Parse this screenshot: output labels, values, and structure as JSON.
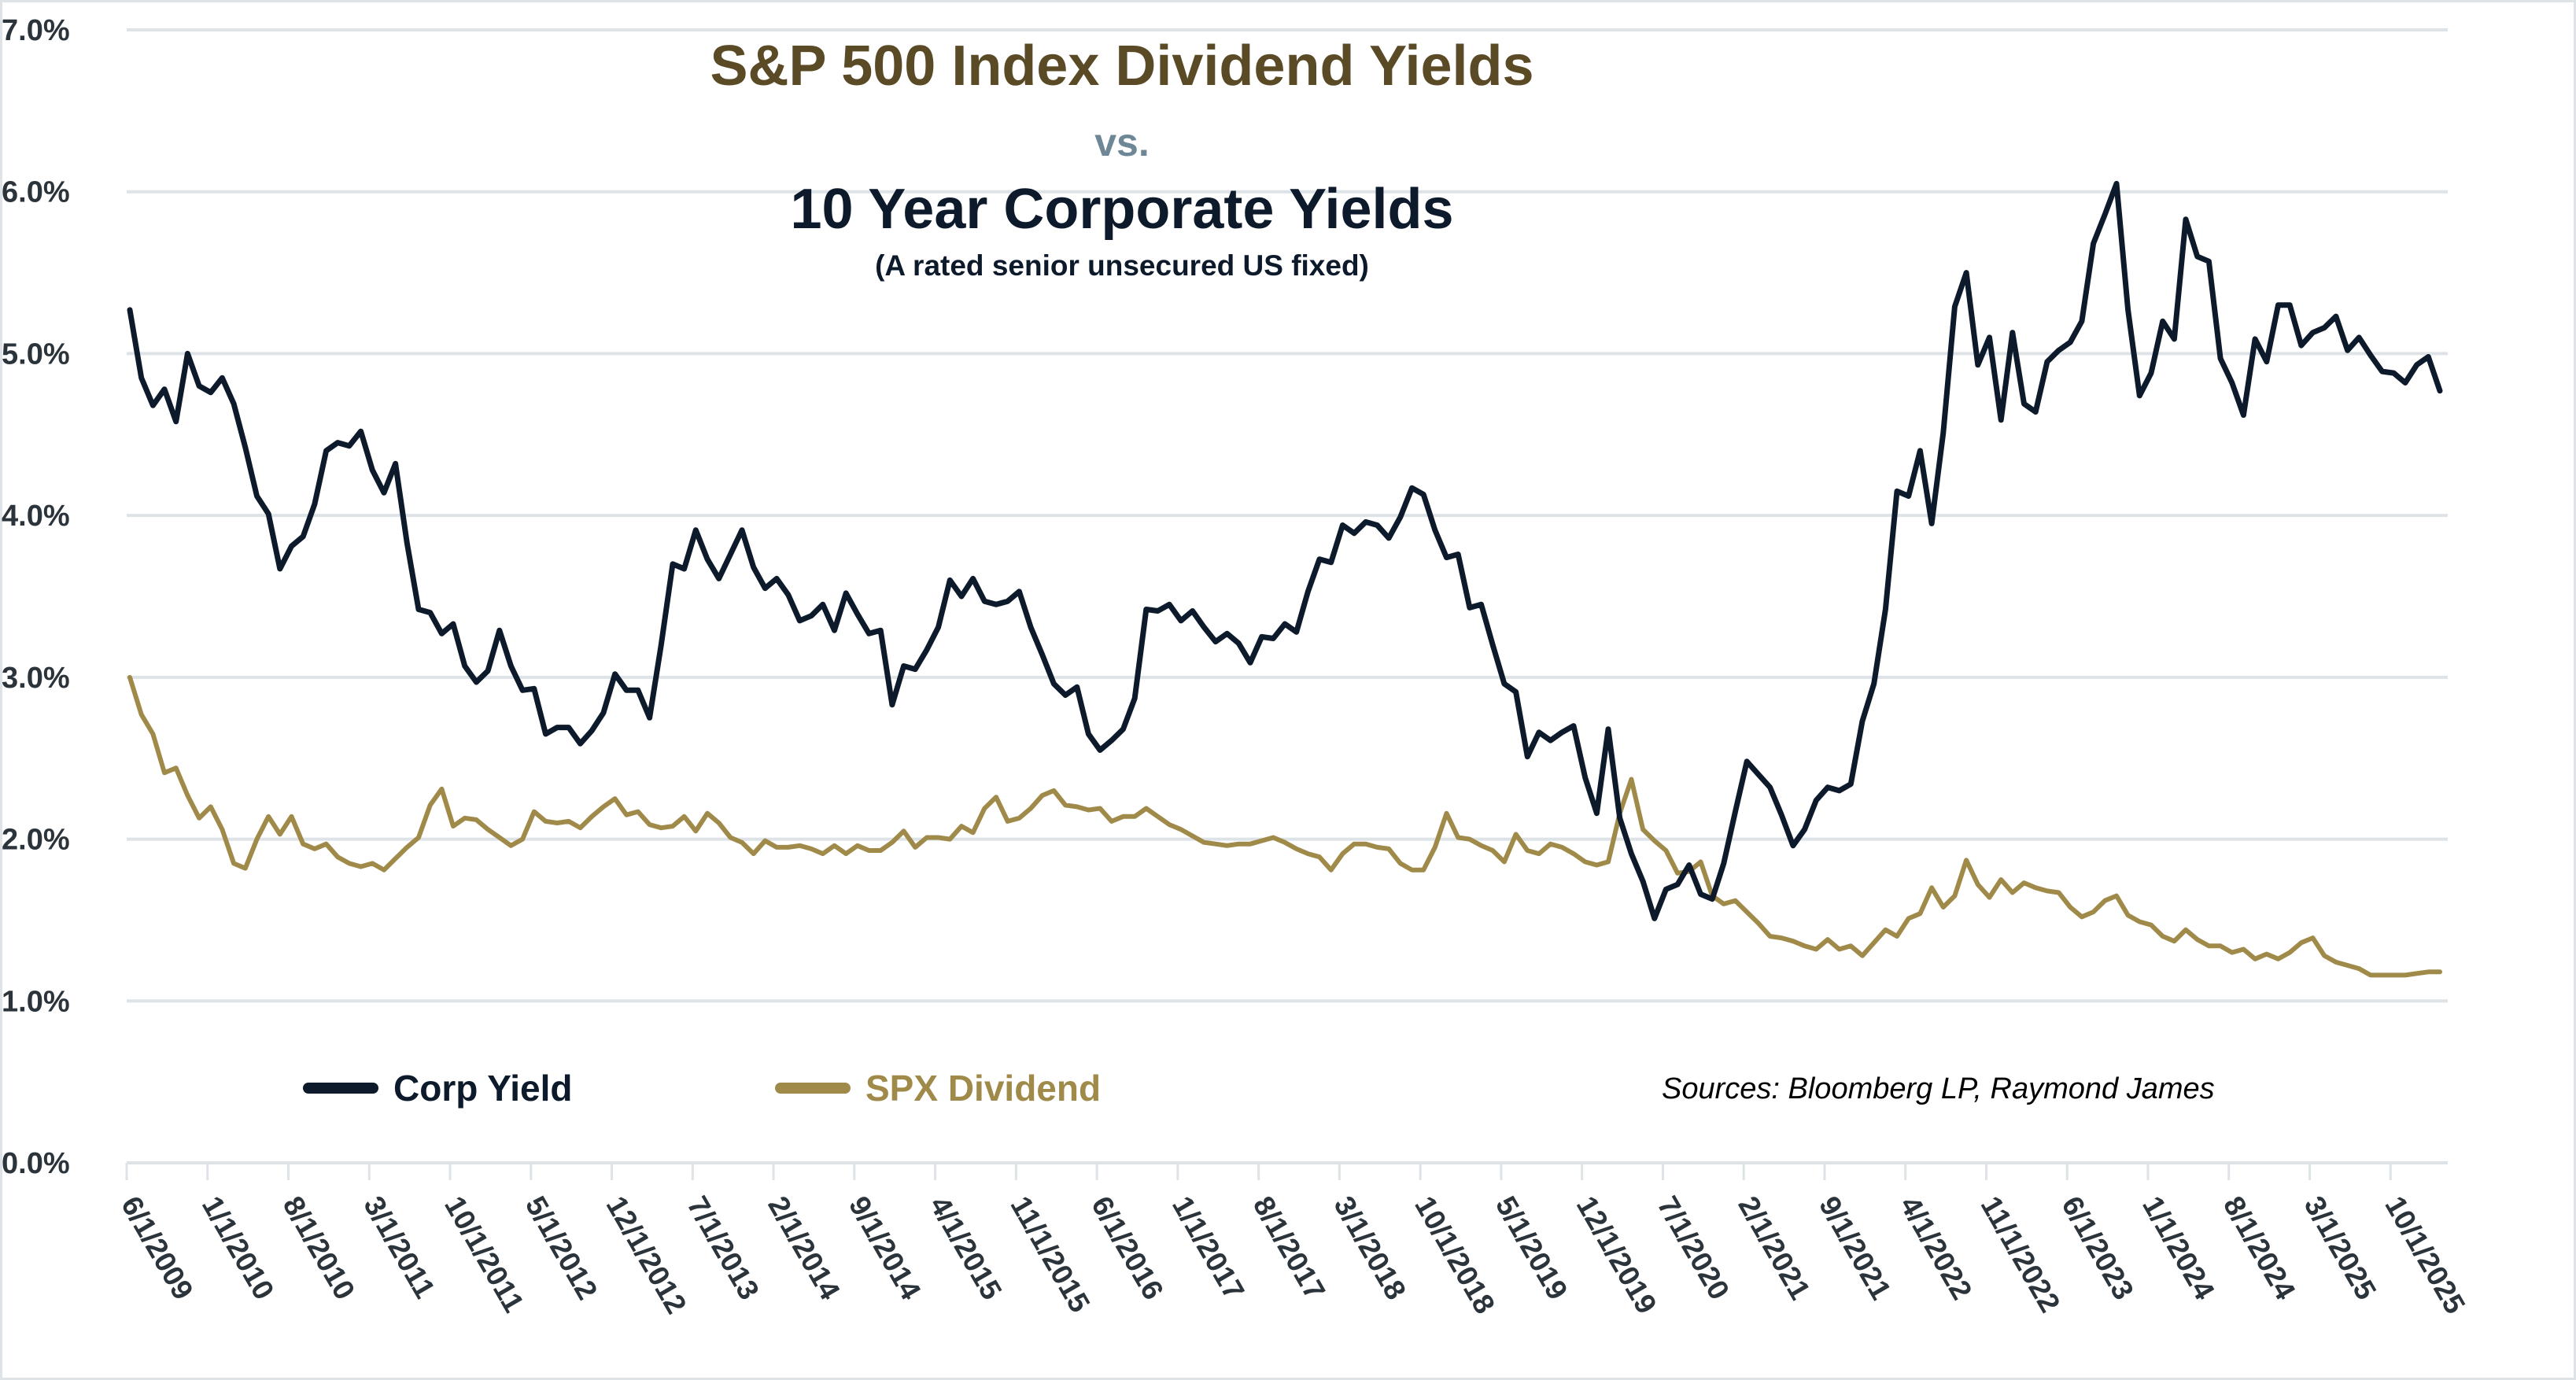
{
  "chart_data": {
    "type": "line",
    "title": "S&P 500 Index Dividend Yields",
    "title_connector": "vs.",
    "title_line2": "10 Year Corporate Yields",
    "subtitle": "(A rated senior unsecured US fixed)",
    "source_note": "Sources: Bloomberg LP, Raymond James",
    "legend_position": "bottom-left",
    "grid": true,
    "ylim": [
      0,
      7
    ],
    "y_ticks": [
      "0.0%",
      "1.0%",
      "2.0%",
      "3.0%",
      "4.0%",
      "5.0%",
      "6.0%",
      "7.0%"
    ],
    "x_ticks": [
      "6/1/2009",
      "1/1/2010",
      "8/1/2010",
      "3/1/2011",
      "10/1/2011",
      "5/1/2012",
      "12/1/2012",
      "7/1/2013",
      "2/1/2014",
      "9/1/2014",
      "4/1/2015",
      "11/1/2015",
      "6/1/2016",
      "1/1/2017",
      "8/1/2017",
      "3/1/2018",
      "10/1/2018",
      "5/1/2019",
      "12/1/2019",
      "7/1/2020",
      "2/1/2021",
      "9/1/2021",
      "4/1/2022",
      "11/1/2022",
      "6/1/2023",
      "1/1/2024",
      "8/1/2024",
      "3/1/2025",
      "10/1/2025"
    ],
    "x": [
      "2009-06",
      "2009-07",
      "2009-08",
      "2009-09",
      "2009-10",
      "2009-11",
      "2009-12",
      "2010-01",
      "2010-02",
      "2010-03",
      "2010-04",
      "2010-05",
      "2010-06",
      "2010-07",
      "2010-08",
      "2010-09",
      "2010-10",
      "2010-11",
      "2010-12",
      "2011-01",
      "2011-02",
      "2011-03",
      "2011-04",
      "2011-05",
      "2011-06",
      "2011-07",
      "2011-08",
      "2011-09",
      "2011-10",
      "2011-11",
      "2011-12",
      "2012-01",
      "2012-02",
      "2012-03",
      "2012-04",
      "2012-05",
      "2012-06",
      "2012-07",
      "2012-08",
      "2012-09",
      "2012-10",
      "2012-11",
      "2012-12",
      "2013-01",
      "2013-02",
      "2013-03",
      "2013-04",
      "2013-05",
      "2013-06",
      "2013-07",
      "2013-08",
      "2013-09",
      "2013-10",
      "2013-11",
      "2013-12",
      "2014-01",
      "2014-02",
      "2014-03",
      "2014-04",
      "2014-05",
      "2014-06",
      "2014-07",
      "2014-08",
      "2014-09",
      "2014-10",
      "2014-11",
      "2014-12",
      "2015-01",
      "2015-02",
      "2015-03",
      "2015-04",
      "2015-05",
      "2015-06",
      "2015-07",
      "2015-08",
      "2015-09",
      "2015-10",
      "2015-11",
      "2015-12",
      "2016-01",
      "2016-02",
      "2016-03",
      "2016-04",
      "2016-05",
      "2016-06",
      "2016-07",
      "2016-08",
      "2016-09",
      "2016-10",
      "2016-11",
      "2016-12",
      "2017-01",
      "2017-02",
      "2017-03",
      "2017-04",
      "2017-05",
      "2017-06",
      "2017-07",
      "2017-08",
      "2017-09",
      "2017-10",
      "2017-11",
      "2017-12",
      "2018-01",
      "2018-02",
      "2018-03",
      "2018-04",
      "2018-05",
      "2018-06",
      "2018-07",
      "2018-08",
      "2018-09",
      "2018-10",
      "2018-11",
      "2018-12",
      "2019-01",
      "2019-02",
      "2019-03",
      "2019-04",
      "2019-05",
      "2019-06",
      "2019-07",
      "2019-08",
      "2019-09",
      "2019-10",
      "2019-11",
      "2019-12",
      "2020-01",
      "2020-02",
      "2020-03",
      "2020-04",
      "2020-05",
      "2020-06",
      "2020-07",
      "2020-08",
      "2020-09",
      "2020-10",
      "2020-11",
      "2020-12",
      "2021-01",
      "2021-02",
      "2021-03",
      "2021-04",
      "2021-05",
      "2021-06",
      "2021-07",
      "2021-08",
      "2021-09",
      "2021-10",
      "2021-11",
      "2021-12",
      "2022-01",
      "2022-02",
      "2022-03",
      "2022-04",
      "2022-05",
      "2022-06",
      "2022-07",
      "2022-08",
      "2022-09",
      "2022-10",
      "2022-11",
      "2022-12",
      "2023-01",
      "2023-02",
      "2023-03",
      "2023-04",
      "2023-05",
      "2023-06",
      "2023-07",
      "2023-08",
      "2023-09",
      "2023-10",
      "2023-11",
      "2023-12",
      "2024-01",
      "2024-02",
      "2024-03",
      "2024-04",
      "2024-05",
      "2024-06",
      "2024-07",
      "2024-08",
      "2024-09",
      "2024-10",
      "2024-11",
      "2024-12",
      "2025-01",
      "2025-02",
      "2025-03",
      "2025-04",
      "2025-05",
      "2025-06",
      "2025-07",
      "2025-08",
      "2025-09",
      "2025-10",
      "2025-11",
      "2025-12",
      "2026-01",
      "2026-02"
    ],
    "series": [
      {
        "name": "Corp Yield",
        "color": "#0d1a2b",
        "values": [
          5.27,
          4.85,
          4.68,
          4.78,
          4.58,
          5.0,
          4.8,
          4.76,
          4.85,
          4.69,
          4.42,
          4.12,
          4.01,
          3.67,
          3.81,
          3.87,
          4.07,
          4.4,
          4.45,
          4.43,
          4.52,
          4.28,
          4.14,
          4.32,
          3.83,
          3.42,
          3.4,
          3.27,
          3.33,
          3.07,
          2.97,
          3.04,
          3.29,
          3.07,
          2.92,
          2.93,
          2.65,
          2.69,
          2.69,
          2.59,
          2.67,
          2.78,
          3.02,
          2.92,
          2.92,
          2.75,
          3.2,
          3.7,
          3.67,
          3.91,
          3.73,
          3.61,
          3.76,
          3.91,
          3.68,
          3.55,
          3.61,
          3.51,
          3.35,
          3.38,
          3.45,
          3.29,
          3.52,
          3.39,
          3.27,
          3.29,
          2.83,
          3.07,
          3.05,
          3.17,
          3.31,
          3.6,
          3.5,
          3.61,
          3.47,
          3.45,
          3.47,
          3.53,
          3.31,
          3.14,
          2.96,
          2.89,
          2.94,
          2.65,
          2.55,
          2.61,
          2.68,
          2.87,
          3.42,
          3.41,
          3.45,
          3.35,
          3.41,
          3.31,
          3.22,
          3.27,
          3.21,
          3.09,
          3.25,
          3.24,
          3.33,
          3.28,
          3.53,
          3.73,
          3.71,
          3.94,
          3.89,
          3.96,
          3.94,
          3.86,
          3.99,
          4.17,
          4.13,
          3.91,
          3.74,
          3.76,
          3.43,
          3.45,
          3.2,
          2.96,
          2.91,
          2.51,
          2.66,
          2.61,
          2.66,
          2.7,
          2.38,
          2.16,
          2.68,
          2.13,
          1.91,
          1.74,
          1.51,
          1.69,
          1.72,
          1.84,
          1.66,
          1.63,
          1.85,
          2.17,
          2.48,
          2.4,
          2.32,
          2.15,
          1.96,
          2.06,
          2.24,
          2.32,
          2.3,
          2.34,
          2.73,
          2.96,
          3.42,
          4.15,
          4.12,
          4.4,
          3.95,
          4.51,
          5.29,
          5.5,
          4.93,
          5.1,
          4.59,
          5.13,
          4.69,
          4.64,
          4.95,
          5.02,
          5.07,
          5.2,
          5.68,
          5.86,
          6.05,
          5.27,
          4.74,
          4.88,
          5.2,
          5.09,
          5.83,
          5.6,
          5.57,
          4.97,
          4.82,
          4.62,
          5.09,
          4.95,
          5.3,
          5.3,
          5.05,
          5.13,
          5.16,
          5.23,
          5.02,
          5.1,
          4.99,
          4.89,
          4.88,
          4.82,
          4.93,
          4.98,
          4.77
        ]
      },
      {
        "name": "SPX Dividend",
        "color": "#a08a4a",
        "values": [
          3.0,
          2.77,
          2.65,
          2.41,
          2.44,
          2.27,
          2.13,
          2.2,
          2.06,
          1.85,
          1.82,
          2.0,
          2.14,
          2.03,
          2.14,
          1.97,
          1.94,
          1.97,
          1.89,
          1.85,
          1.83,
          1.85,
          1.81,
          1.88,
          1.95,
          2.01,
          2.21,
          2.31,
          2.08,
          2.13,
          2.12,
          2.06,
          2.01,
          1.96,
          2.0,
          2.17,
          2.11,
          2.1,
          2.11,
          2.07,
          2.14,
          2.2,
          2.25,
          2.15,
          2.17,
          2.09,
          2.07,
          2.08,
          2.14,
          2.05,
          2.16,
          2.1,
          2.01,
          1.98,
          1.91,
          1.99,
          1.95,
          1.95,
          1.96,
          1.94,
          1.91,
          1.96,
          1.91,
          1.96,
          1.93,
          1.93,
          1.98,
          2.05,
          1.95,
          2.01,
          2.01,
          2.0,
          2.08,
          2.04,
          2.19,
          2.26,
          2.11,
          2.13,
          2.19,
          2.27,
          2.3,
          2.21,
          2.2,
          2.18,
          2.19,
          2.11,
          2.14,
          2.14,
          2.19,
          2.14,
          2.09,
          2.06,
          2.02,
          1.98,
          1.97,
          1.96,
          1.97,
          1.97,
          1.99,
          2.01,
          1.98,
          1.94,
          1.91,
          1.89,
          1.81,
          1.91,
          1.97,
          1.97,
          1.95,
          1.94,
          1.85,
          1.81,
          1.81,
          1.95,
          2.16,
          2.01,
          2.0,
          1.96,
          1.93,
          1.86,
          2.03,
          1.93,
          1.91,
          1.97,
          1.95,
          1.91,
          1.86,
          1.84,
          1.86,
          2.16,
          2.37,
          2.06,
          1.99,
          1.93,
          1.79,
          1.8,
          1.86,
          1.65,
          1.6,
          1.62,
          1.55,
          1.48,
          1.4,
          1.39,
          1.37,
          1.34,
          1.32,
          1.38,
          1.32,
          1.34,
          1.28,
          1.36,
          1.44,
          1.4,
          1.51,
          1.54,
          1.7,
          1.58,
          1.65,
          1.87,
          1.72,
          1.64,
          1.75,
          1.67,
          1.73,
          1.7,
          1.68,
          1.67,
          1.58,
          1.52,
          1.55,
          1.62,
          1.65,
          1.53,
          1.49,
          1.47,
          1.4,
          1.37,
          1.44,
          1.38,
          1.34,
          1.34,
          1.3,
          1.32,
          1.26,
          1.29,
          1.26,
          1.3,
          1.36,
          1.39,
          1.28,
          1.24,
          1.22,
          1.2,
          1.16,
          1.16,
          1.16,
          1.16,
          1.17,
          1.18,
          1.18
        ]
      }
    ]
  }
}
